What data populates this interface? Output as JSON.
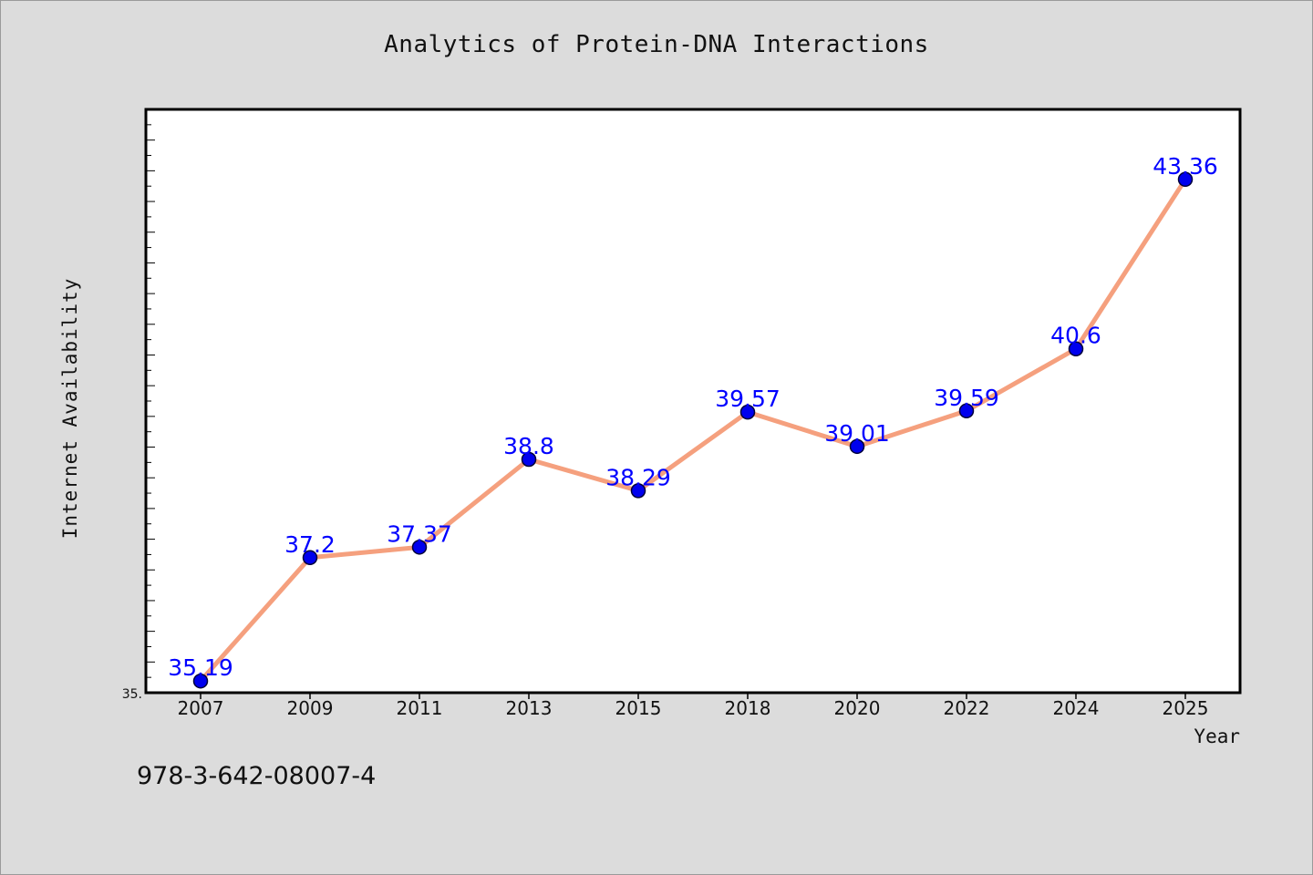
{
  "chart_data": {
    "type": "line",
    "title": "Analytics of Protein-DNA Interactions",
    "xlabel": "Year",
    "ylabel": "Internet Availability",
    "categories": [
      "2007",
      "2009",
      "2011",
      "2013",
      "2015",
      "2018",
      "2020",
      "2022",
      "2024",
      "2025"
    ],
    "series": [
      {
        "values": [
          35.19,
          37.2,
          37.37,
          38.8,
          38.29,
          39.57,
          39.01,
          39.59,
          40.6,
          43.36
        ]
      }
    ],
    "data_labels": [
      "35.19",
      "37.2",
      "37.37",
      "38.8",
      "38.29",
      "39.57",
      "39.01",
      "39.59",
      "40.6",
      "43.36"
    ],
    "ylim": [
      35.0,
      44.5
    ],
    "y_tick_label": "35.",
    "grid": false,
    "legend": "none",
    "colors": {
      "line": "#f5a07e",
      "marker": "#0000ee",
      "marker_edge": "#00003a",
      "data_label": "#0000ff",
      "background": "#dcdcdc",
      "plot_area": "#ffffff"
    }
  },
  "footer": {
    "text": "978-3-642-08007-4"
  }
}
